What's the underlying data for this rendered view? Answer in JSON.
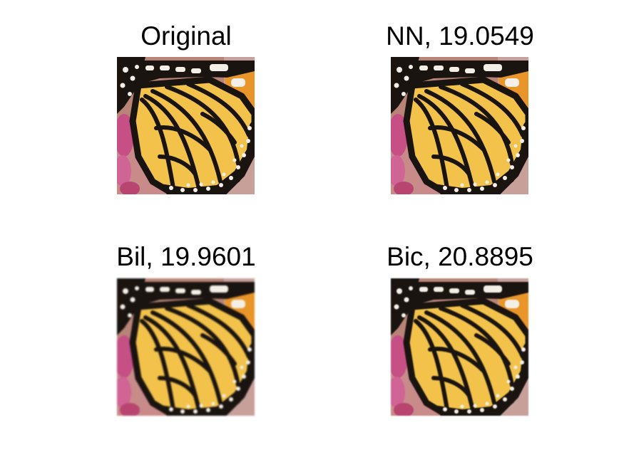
{
  "figure": {
    "panels": [
      {
        "id": "original",
        "title": "Original"
      },
      {
        "id": "nn",
        "title": "NN, 19.0549"
      },
      {
        "id": "bil",
        "title": "Bil, 19.9601"
      },
      {
        "id": "bic",
        "title": "Bic, 20.8895"
      }
    ],
    "colors": {
      "background": "#ffffff",
      "wing_yellow": "#f2c24a",
      "wing_orange": "#e8952a",
      "vein_black": "#1a1410",
      "flower_pink": "#c64f86",
      "background_pink": "#c98a8a",
      "spot_white": "#f4efe6"
    }
  }
}
